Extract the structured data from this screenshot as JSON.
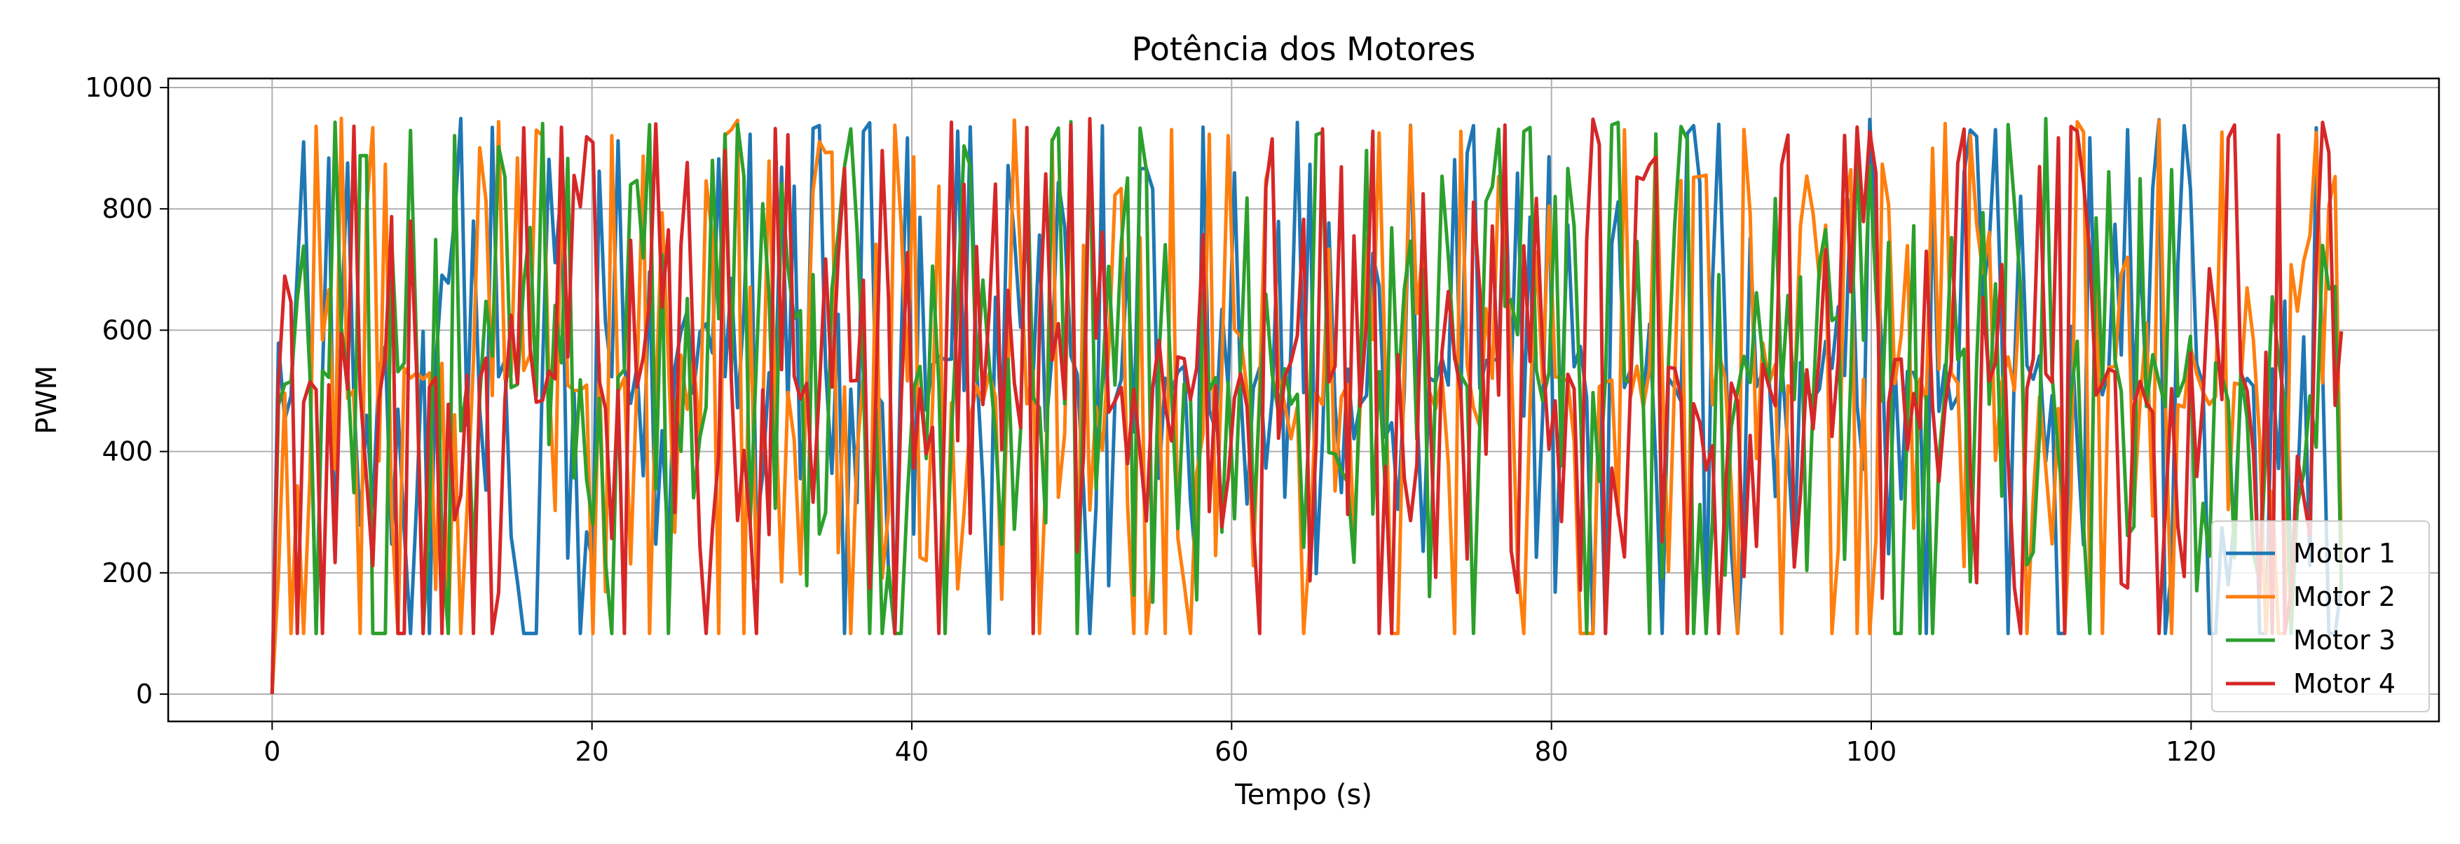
{
  "chart_data": {
    "type": "line",
    "title": "Potência dos Motores",
    "xlabel": "Tempo (s)",
    "ylabel": "PWM",
    "xlim": [
      -6.5,
      135.5
    ],
    "ylim": [
      -45,
      1015
    ],
    "xticks": [
      0,
      20,
      40,
      60,
      80,
      100,
      120
    ],
    "yticks": [
      0,
      200,
      400,
      600,
      800,
      1000
    ],
    "grid": true,
    "legend_position": "bottom-right",
    "x_range": [
      0,
      129.4
    ],
    "sample_count": 330,
    "pwm_min": 100,
    "pwm_max": 950,
    "series": [
      {
        "name": "Motor 1",
        "color": "#1f77b4",
        "start_value": 0
      },
      {
        "name": "Motor 2",
        "color": "#ff7f0e",
        "start_value": 0
      },
      {
        "name": "Motor 3",
        "color": "#2ca02c",
        "start_value": 0
      },
      {
        "name": "Motor 4",
        "color": "#d62728",
        "start_value": 0
      }
    ]
  }
}
